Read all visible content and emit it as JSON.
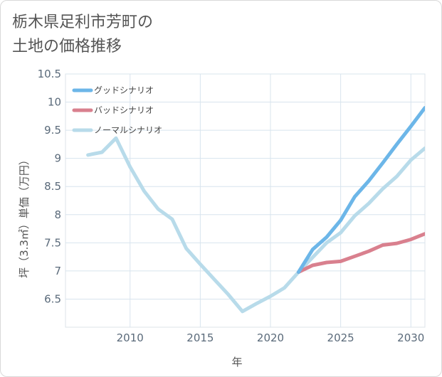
{
  "chart_data": {
    "type": "line",
    "title": "栃木県足利市芳町の\n土地の価格推移",
    "xlabel": "年",
    "ylabel": "坪（3.3㎡）単価（万円）",
    "xlim": [
      2005.4,
      2031
    ],
    "ylim": [
      6.0,
      10.5
    ],
    "xticks": [
      2010,
      2015,
      2020,
      2025,
      2030
    ],
    "yticks": [
      6.5,
      7,
      7.5,
      8,
      8.5,
      9,
      9.5,
      10,
      10.5
    ],
    "ytick_labels": [
      "6.5",
      "7",
      "7.5",
      "8",
      "8.5",
      "9",
      "9.5",
      "10",
      "10.5"
    ],
    "grid": true,
    "legend_position": "top-left",
    "series": [
      {
        "name": "グッドシナリオ",
        "color": "#6cb6e8",
        "x": [
          2022,
          2023,
          2024,
          2025,
          2026,
          2027,
          2028,
          2029,
          2030,
          2031
        ],
        "y": [
          6.98,
          7.38,
          7.6,
          7.9,
          8.32,
          8.6,
          8.92,
          9.25,
          9.57,
          9.9
        ]
      },
      {
        "name": "バッドシナリオ",
        "color": "#d9808e",
        "x": [
          2022,
          2023,
          2024,
          2025,
          2026,
          2027,
          2028,
          2029,
          2030,
          2031
        ],
        "y": [
          6.98,
          7.1,
          7.15,
          7.17,
          7.26,
          7.35,
          7.46,
          7.49,
          7.56,
          7.66
        ]
      },
      {
        "name": "ノーマルシナリオ",
        "color": "#b8dbea",
        "x": [
          2007,
          2008,
          2009,
          2010,
          2011,
          2012,
          2013,
          2014,
          2015,
          2016,
          2017,
          2018,
          2019,
          2020,
          2021,
          2022,
          2023,
          2024,
          2025,
          2026,
          2027,
          2028,
          2029,
          2030,
          2031
        ],
        "y": [
          9.06,
          9.11,
          9.36,
          8.85,
          8.42,
          8.1,
          7.92,
          7.4,
          7.12,
          6.85,
          6.58,
          6.28,
          6.42,
          6.55,
          6.7,
          6.98,
          7.24,
          7.5,
          7.68,
          7.98,
          8.2,
          8.46,
          8.68,
          8.97,
          9.18
        ]
      }
    ]
  }
}
